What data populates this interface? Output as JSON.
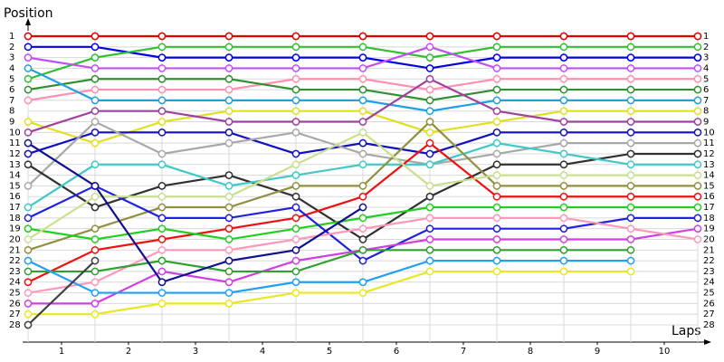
{
  "chart_data": {
    "type": "lap",
    "y_label": "Position",
    "x_label": "Laps",
    "x": [
      0,
      1,
      2,
      3,
      4,
      5,
      6,
      7,
      8,
      9,
      10
    ],
    "xlim": [
      0,
      10
    ],
    "xticks": [
      {
        "value": 0.5,
        "label": "1"
      },
      {
        "value": 1.5,
        "label": "2"
      },
      {
        "value": 2.5,
        "label": "3"
      },
      {
        "value": 3.5,
        "label": "4"
      },
      {
        "value": 4.5,
        "label": "5"
      },
      {
        "value": 5.5,
        "label": "6"
      },
      {
        "value": 6.5,
        "label": "7"
      },
      {
        "value": 7.5,
        "label": "8"
      },
      {
        "value": 8.5,
        "label": "9"
      },
      {
        "value": 9.5,
        "label": "10"
      }
    ],
    "ylim": [
      1,
      28
    ],
    "yticks": [
      1,
      2,
      3,
      4,
      5,
      6,
      7,
      8,
      9,
      10,
      11,
      12,
      13,
      14,
      15,
      16,
      17,
      18,
      19,
      20,
      21,
      22,
      23,
      24,
      25,
      26,
      27,
      28
    ],
    "grid": true,
    "series": [
      {
        "color": "#e00000",
        "values": [
          1,
          1,
          1,
          1,
          1,
          1,
          1,
          1,
          1,
          1,
          1
        ]
      },
      {
        "color": "#0000e0",
        "values": [
          2,
          2,
          3,
          3,
          3,
          3,
          4,
          3,
          3,
          3,
          3
        ]
      },
      {
        "color": "#30c030",
        "values": [
          5,
          3,
          2,
          2,
          2,
          2,
          3,
          2,
          2,
          2,
          2
        ]
      },
      {
        "color": "#c050f0",
        "values": [
          3,
          4,
          4,
          4,
          4,
          4,
          2,
          4,
          4,
          4,
          4
        ]
      },
      {
        "color": "#ff90b0",
        "values": [
          7,
          6,
          6,
          6,
          5,
          5,
          6,
          5,
          5,
          5,
          5
        ]
      },
      {
        "color": "#309030",
        "values": [
          6,
          5,
          5,
          5,
          6,
          6,
          7,
          6,
          6,
          6,
          6
        ]
      },
      {
        "color": "#20a0e0",
        "values": [
          4,
          7,
          7,
          7,
          7,
          7,
          8,
          7,
          7,
          7,
          7
        ]
      },
      {
        "color": "#e0e020",
        "values": [
          9,
          11,
          9,
          8,
          8,
          8,
          10,
          9,
          8,
          8,
          8
        ]
      },
      {
        "color": "#a040a0",
        "values": [
          10,
          8,
          8,
          9,
          9,
          9,
          5,
          8,
          9,
          9,
          9
        ]
      },
      {
        "color": "#1010c0",
        "values": [
          12,
          10,
          10,
          10,
          12,
          11,
          12,
          10,
          10,
          10,
          10
        ]
      },
      {
        "color": "#a8a8a8",
        "values": [
          15,
          9,
          12,
          11,
          10,
          12,
          13,
          12,
          11,
          11,
          11
        ]
      },
      {
        "color": "#303030",
        "values": [
          13,
          17,
          15,
          14,
          16,
          20,
          16,
          13,
          13,
          12,
          12
        ]
      },
      {
        "color": "#40c8c8",
        "values": [
          17,
          13,
          13,
          15,
          14,
          13,
          13,
          11,
          12,
          13,
          13
        ]
      },
      {
        "color": "#909040",
        "values": [
          21,
          19,
          17,
          17,
          15,
          15,
          9,
          15,
          15,
          15,
          15
        ]
      },
      {
        "color": "#f01010",
        "values": [
          24,
          21,
          20,
          19,
          18,
          16,
          11,
          16,
          16,
          16,
          16
        ]
      },
      {
        "color": "#20d020",
        "values": [
          19,
          20,
          19,
          20,
          19,
          18,
          17,
          17,
          17,
          17,
          17
        ]
      },
      {
        "color": "#2020e0",
        "values": [
          18,
          15,
          18,
          18,
          17,
          22,
          19,
          19,
          19,
          18,
          18
        ]
      },
      {
        "color": "#c8e090",
        "values": [
          20,
          16,
          16,
          16,
          13,
          10,
          15,
          14,
          14,
          14,
          14
        ]
      },
      {
        "color": "#d040e0",
        "values": [
          26,
          26,
          23,
          24,
          22,
          21,
          20,
          20,
          20,
          20,
          19
        ]
      },
      {
        "color": "#ff98b8",
        "values": [
          25,
          24,
          21,
          21,
          20,
          19,
          18,
          18,
          18,
          19,
          20
        ]
      },
      {
        "color": "#30a030",
        "values": [
          23,
          23,
          22,
          23,
          23,
          21,
          21,
          21,
          21,
          21,
          null
        ]
      },
      {
        "color": "#20a0f0",
        "values": [
          22,
          25,
          25,
          25,
          24,
          24,
          22,
          22,
          22,
          22,
          null
        ]
      },
      {
        "color": "#e8e820",
        "values": [
          27,
          27,
          26,
          26,
          25,
          25,
          23,
          23,
          23,
          23,
          null
        ]
      },
      {
        "color": "#404040",
        "values": [
          28,
          22,
          null,
          null,
          null,
          null,
          null,
          null,
          null,
          null,
          null
        ]
      },
      {
        "color": "#101090",
        "values": [
          11,
          15,
          24,
          22,
          21,
          17,
          null,
          null,
          null,
          null,
          null
        ]
      }
    ]
  }
}
